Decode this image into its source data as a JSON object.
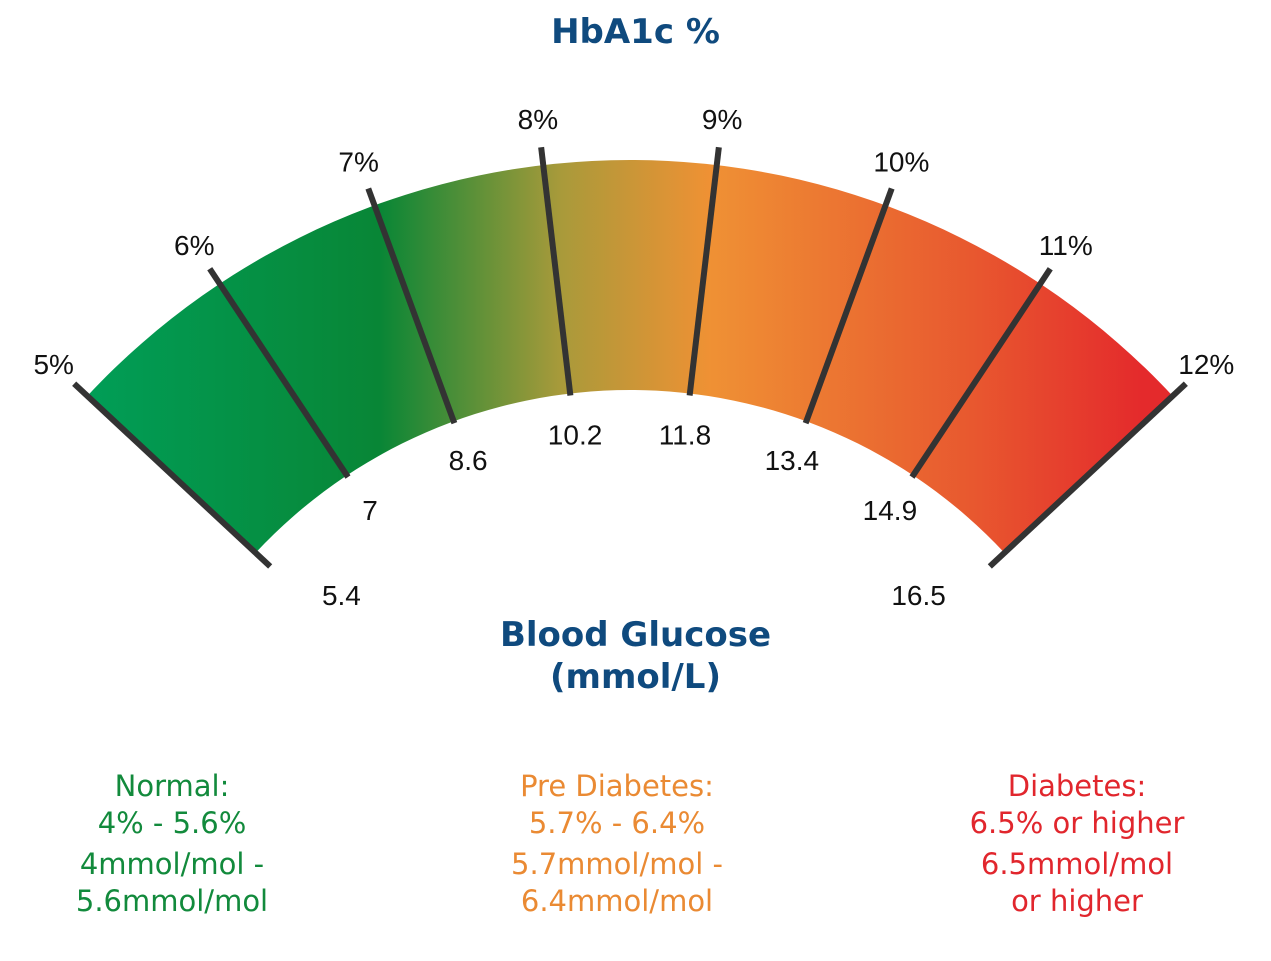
{
  "header": {
    "title": "HbA1c %"
  },
  "footer": {
    "title_line1": "Blood Glucose",
    "title_line2": "(mmol/L)"
  },
  "colors": {
    "title": "#0f4a7e",
    "tick": "#333333",
    "green": "#00994f",
    "dark_green": "#088636",
    "orange": "#ef9134",
    "red": "#e42a2c"
  },
  "hba1c_labels": [
    "5%",
    "6%",
    "7%",
    "8%",
    "9%",
    "10%",
    "11%",
    "12%"
  ],
  "glucose_labels": [
    "5.4",
    "7",
    "8.6",
    "10.2",
    "11.8",
    "13.4",
    "14.9",
    "16.5"
  ],
  "legend": {
    "normal": {
      "title": "Normal:",
      "range": "4% - 5.6%",
      "mmol_line1": "4mmol/mol -",
      "mmol_line2": "5.6mmol/mol",
      "color": "#128a3c"
    },
    "pre_diabetes": {
      "title": "Pre Diabetes:",
      "range": "5.7% - 6.4%",
      "mmol_line1": "5.7mmol/mol -",
      "mmol_line2": "6.4mmol/mol",
      "color": "#ea8a33"
    },
    "diabetes": {
      "title": "Diabetes:",
      "range": "6.5% or higher",
      "mmol_line1": "6.5mmol/mol",
      "mmol_line2": "or higher",
      "color": "#e1262d"
    }
  }
}
